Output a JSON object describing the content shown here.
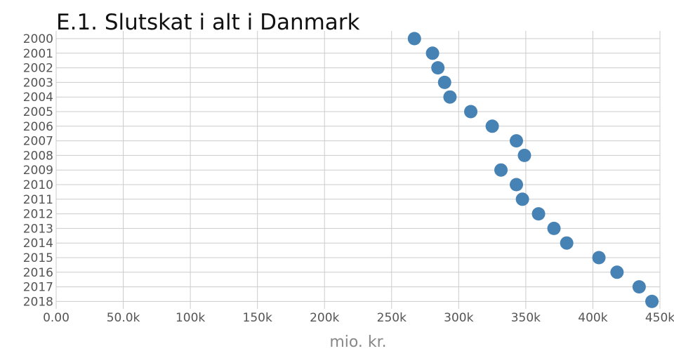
{
  "chart_data": {
    "type": "scatter",
    "title": "E.1. Slutskat i alt i Danmark",
    "xlabel": "mio. kr.",
    "ylabel": "",
    "xlim": [
      0,
      450000
    ],
    "x_ticks": [
      0,
      50000,
      100000,
      150000,
      200000,
      250000,
      300000,
      350000,
      400000,
      450000
    ],
    "x_tick_labels": [
      "0.00",
      "50.0k",
      "100k",
      "150k",
      "200k",
      "250k",
      "300k",
      "350k",
      "400k",
      "450k"
    ],
    "categories": [
      "2000",
      "2001",
      "2002",
      "2003",
      "2004",
      "2005",
      "2006",
      "2007",
      "2008",
      "2009",
      "2010",
      "2011",
      "2012",
      "2013",
      "2014",
      "2015",
      "2016",
      "2017",
      "2018"
    ],
    "grid": true,
    "legend": "none",
    "series": [
      {
        "color": "#4682b4",
        "values": [
          267000,
          280500,
          284500,
          289500,
          293500,
          309000,
          325000,
          343000,
          349000,
          331500,
          343000,
          347500,
          359500,
          371000,
          380500,
          404500,
          418000,
          434500,
          444000
        ]
      }
    ]
  }
}
